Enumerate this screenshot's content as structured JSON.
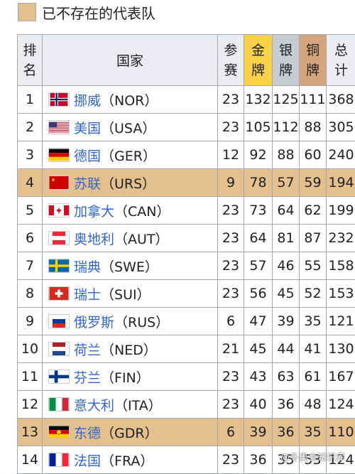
{
  "legend": {
    "label": "已不存在的代表队",
    "color": "#e3c08e"
  },
  "headers": {
    "rank": [
      "排",
      "名"
    ],
    "nation": "国家",
    "games": [
      "参",
      "赛"
    ],
    "gold": [
      "金",
      "牌"
    ],
    "silver": [
      "银",
      "牌"
    ],
    "bronze": [
      "铜",
      "牌"
    ],
    "total": [
      "总",
      "计"
    ]
  },
  "rows": [
    {
      "rank": "1",
      "name": "挪威",
      "code": "（NOR）",
      "flag": "norway-flag-icon",
      "games": "23",
      "gold": "132",
      "silver": "125",
      "bronze": "111",
      "total": "368",
      "defunct": false
    },
    {
      "rank": "2",
      "name": "美国",
      "code": "（USA）",
      "flag": "usa-flag-icon",
      "games": "23",
      "gold": "105",
      "silver": "112",
      "bronze": "88",
      "total": "305",
      "defunct": false
    },
    {
      "rank": "3",
      "name": "德国",
      "code": "（GER）",
      "flag": "germany-flag-icon",
      "games": "12",
      "gold": "92",
      "silver": "88",
      "bronze": "60",
      "total": "240",
      "defunct": false
    },
    {
      "rank": "4",
      "name": "苏联",
      "code": "（URS）",
      "flag": "ussr-flag-icon",
      "games": "9",
      "gold": "78",
      "silver": "57",
      "bronze": "59",
      "total": "194",
      "defunct": true
    },
    {
      "rank": "5",
      "name": "加拿大",
      "code": "（CAN）",
      "flag": "canada-flag-icon",
      "games": "23",
      "gold": "73",
      "silver": "64",
      "bronze": "62",
      "total": "199",
      "defunct": false
    },
    {
      "rank": "6",
      "name": "奥地利",
      "code": "（AUT）",
      "flag": "austria-flag-icon",
      "games": "23",
      "gold": "64",
      "silver": "81",
      "bronze": "87",
      "total": "232",
      "defunct": false
    },
    {
      "rank": "7",
      "name": "瑞典",
      "code": "（SWE）",
      "flag": "sweden-flag-icon",
      "games": "23",
      "gold": "57",
      "silver": "46",
      "bronze": "55",
      "total": "158",
      "defunct": false
    },
    {
      "rank": "8",
      "name": "瑞士",
      "code": "（SUI）",
      "flag": "switzerland-flag-icon",
      "games": "23",
      "gold": "56",
      "silver": "45",
      "bronze": "52",
      "total": "153",
      "defunct": false
    },
    {
      "rank": "9",
      "name": "俄罗斯",
      "code": "（RUS）",
      "flag": "russia-flag-icon",
      "games": "6",
      "gold": "47",
      "silver": "39",
      "bronze": "35",
      "total": "121",
      "defunct": false
    },
    {
      "rank": "10",
      "name": "荷兰",
      "code": "（NED）",
      "flag": "netherlands-flag-icon",
      "games": "21",
      "gold": "45",
      "silver": "44",
      "bronze": "41",
      "total": "130",
      "defunct": false
    },
    {
      "rank": "11",
      "name": "芬兰",
      "code": "（FIN）",
      "flag": "finland-flag-icon",
      "games": "23",
      "gold": "43",
      "silver": "63",
      "bronze": "61",
      "total": "167",
      "defunct": false
    },
    {
      "rank": "12",
      "name": "意大利",
      "code": "（ITA）",
      "flag": "italy-flag-icon",
      "games": "23",
      "gold": "40",
      "silver": "36",
      "bronze": "48",
      "total": "124",
      "defunct": false
    },
    {
      "rank": "13",
      "name": "东德",
      "code": "（GDR）",
      "flag": "east-germany-flag-icon",
      "games": "6",
      "gold": "39",
      "silver": "36",
      "bronze": "35",
      "total": "110",
      "defunct": true
    },
    {
      "rank": "14",
      "name": "法国",
      "code": "（FRA）",
      "flag": "france-flag-icon",
      "games": "23",
      "gold": "36",
      "silver": "35",
      "bronze": "53",
      "total": "124",
      "defunct": false
    }
  ],
  "watermark": "@冬奥会知识库"
}
